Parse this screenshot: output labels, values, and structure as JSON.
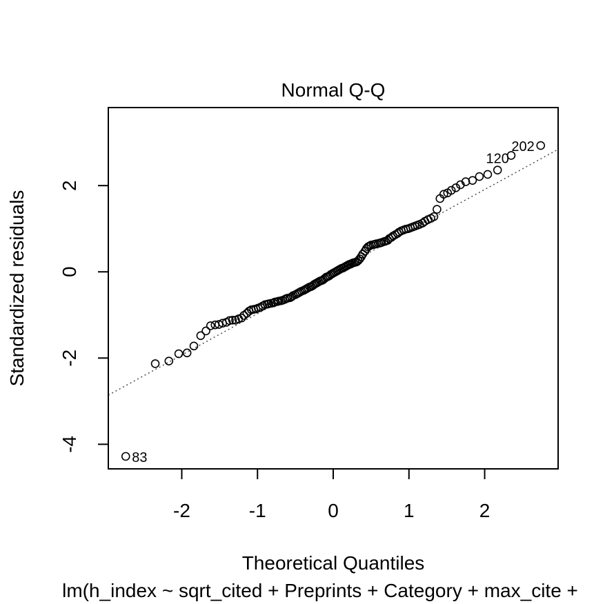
{
  "chart_data": {
    "type": "scatter",
    "title": "Normal Q-Q",
    "xlabel": "Theoretical Quantiles",
    "ylabel": "Standardized residuals",
    "subtitle": "lm(h_index ~ sqrt_cited + Preprints + Category + max_cite +",
    "xlim": [
      -2.97,
      2.97
    ],
    "ylim": [
      -4.57,
      3.81
    ],
    "x_ticks": [
      -2,
      -1,
      0,
      1,
      2
    ],
    "y_ticks": [
      -4,
      -2,
      0,
      2
    ],
    "x_tick_labels": [
      "-2",
      "-1",
      "0",
      "1",
      "2"
    ],
    "y_tick_labels": [
      "-4",
      "-2",
      "0",
      "2"
    ],
    "grid": false,
    "reference_line": {
      "style": "dotted",
      "color": "#555555",
      "points": [
        [
          -2.97,
          -2.86
        ],
        [
          2.97,
          2.84
        ]
      ]
    },
    "series": [
      {
        "marker": "open-circle",
        "x": [
          -2.74,
          -2.35,
          -2.17,
          -2.04,
          -1.93,
          -1.84,
          -1.75,
          -1.68,
          -1.62,
          -1.56,
          -1.51,
          -1.46,
          -1.41,
          -1.37,
          -1.33,
          -1.29,
          -1.25,
          -1.21,
          -1.18,
          -1.14,
          -1.11,
          -1.08,
          -1.05,
          -1.02,
          -0.99,
          -0.96,
          -0.93,
          -0.9,
          -0.87,
          -0.85,
          -0.82,
          -0.79,
          -0.77,
          -0.74,
          -0.72,
          -0.69,
          -0.67,
          -0.64,
          -0.62,
          -0.6,
          -0.57,
          -0.55,
          -0.53,
          -0.5,
          -0.48,
          -0.46,
          -0.44,
          -0.42,
          -0.39,
          -0.37,
          -0.35,
          -0.33,
          -0.31,
          -0.29,
          -0.27,
          -0.25,
          -0.23,
          -0.21,
          -0.19,
          -0.17,
          -0.15,
          -0.13,
          -0.11,
          -0.09,
          -0.07,
          -0.05,
          -0.03,
          -0.01,
          0.01,
          0.03,
          0.05,
          0.07,
          0.09,
          0.11,
          0.13,
          0.15,
          0.17,
          0.19,
          0.21,
          0.23,
          0.25,
          0.27,
          0.29,
          0.31,
          0.33,
          0.35,
          0.37,
          0.39,
          0.42,
          0.44,
          0.46,
          0.48,
          0.5,
          0.53,
          0.55,
          0.57,
          0.6,
          0.62,
          0.64,
          0.67,
          0.69,
          0.72,
          0.74,
          0.77,
          0.79,
          0.82,
          0.85,
          0.87,
          0.9,
          0.93,
          0.96,
          0.99,
          1.02,
          1.05,
          1.08,
          1.11,
          1.14,
          1.18,
          1.21,
          1.25,
          1.29,
          1.33,
          1.37,
          1.41,
          1.46,
          1.51,
          1.56,
          1.62,
          1.68,
          1.75,
          1.84,
          1.93,
          2.04,
          2.17,
          2.35,
          2.74
        ],
        "y": [
          -4.28,
          -2.13,
          -2.07,
          -1.9,
          -1.88,
          -1.72,
          -1.48,
          -1.37,
          -1.25,
          -1.23,
          -1.22,
          -1.19,
          -1.17,
          -1.13,
          -1.12,
          -1.12,
          -1.09,
          -1.07,
          -1.01,
          -0.96,
          -0.91,
          -0.88,
          -0.87,
          -0.86,
          -0.84,
          -0.82,
          -0.79,
          -0.76,
          -0.75,
          -0.74,
          -0.73,
          -0.72,
          -0.7,
          -0.69,
          -0.68,
          -0.67,
          -0.66,
          -0.64,
          -0.62,
          -0.61,
          -0.6,
          -0.58,
          -0.55,
          -0.53,
          -0.51,
          -0.49,
          -0.47,
          -0.45,
          -0.43,
          -0.41,
          -0.39,
          -0.37,
          -0.35,
          -0.34,
          -0.32,
          -0.29,
          -0.27,
          -0.25,
          -0.23,
          -0.21,
          -0.2,
          -0.18,
          -0.15,
          -0.12,
          -0.11,
          -0.09,
          -0.06,
          -0.04,
          -0.02,
          0.0,
          0.02,
          0.04,
          0.06,
          0.08,
          0.09,
          0.11,
          0.13,
          0.15,
          0.17,
          0.18,
          0.2,
          0.21,
          0.22,
          0.23,
          0.26,
          0.3,
          0.35,
          0.41,
          0.48,
          0.54,
          0.58,
          0.6,
          0.62,
          0.63,
          0.64,
          0.65,
          0.66,
          0.67,
          0.68,
          0.7,
          0.71,
          0.73,
          0.77,
          0.8,
          0.83,
          0.86,
          0.89,
          0.92,
          0.95,
          0.97,
          0.99,
          1.0,
          1.02,
          1.04,
          1.06,
          1.08,
          1.1,
          1.13,
          1.17,
          1.21,
          1.24,
          1.28,
          1.45,
          1.7,
          1.8,
          1.83,
          1.89,
          1.95,
          2.02,
          2.09,
          2.12,
          2.21,
          2.26,
          2.36,
          2.7,
          2.93
        ]
      }
    ],
    "annotations": [
      {
        "label": "83",
        "x": -2.74,
        "y": -4.28,
        "position": "right"
      },
      {
        "label": "120",
        "x": 2.17,
        "y": 2.36,
        "position": "above"
      },
      {
        "label": "202",
        "x": 2.74,
        "y": 2.93,
        "position": "left"
      }
    ]
  }
}
